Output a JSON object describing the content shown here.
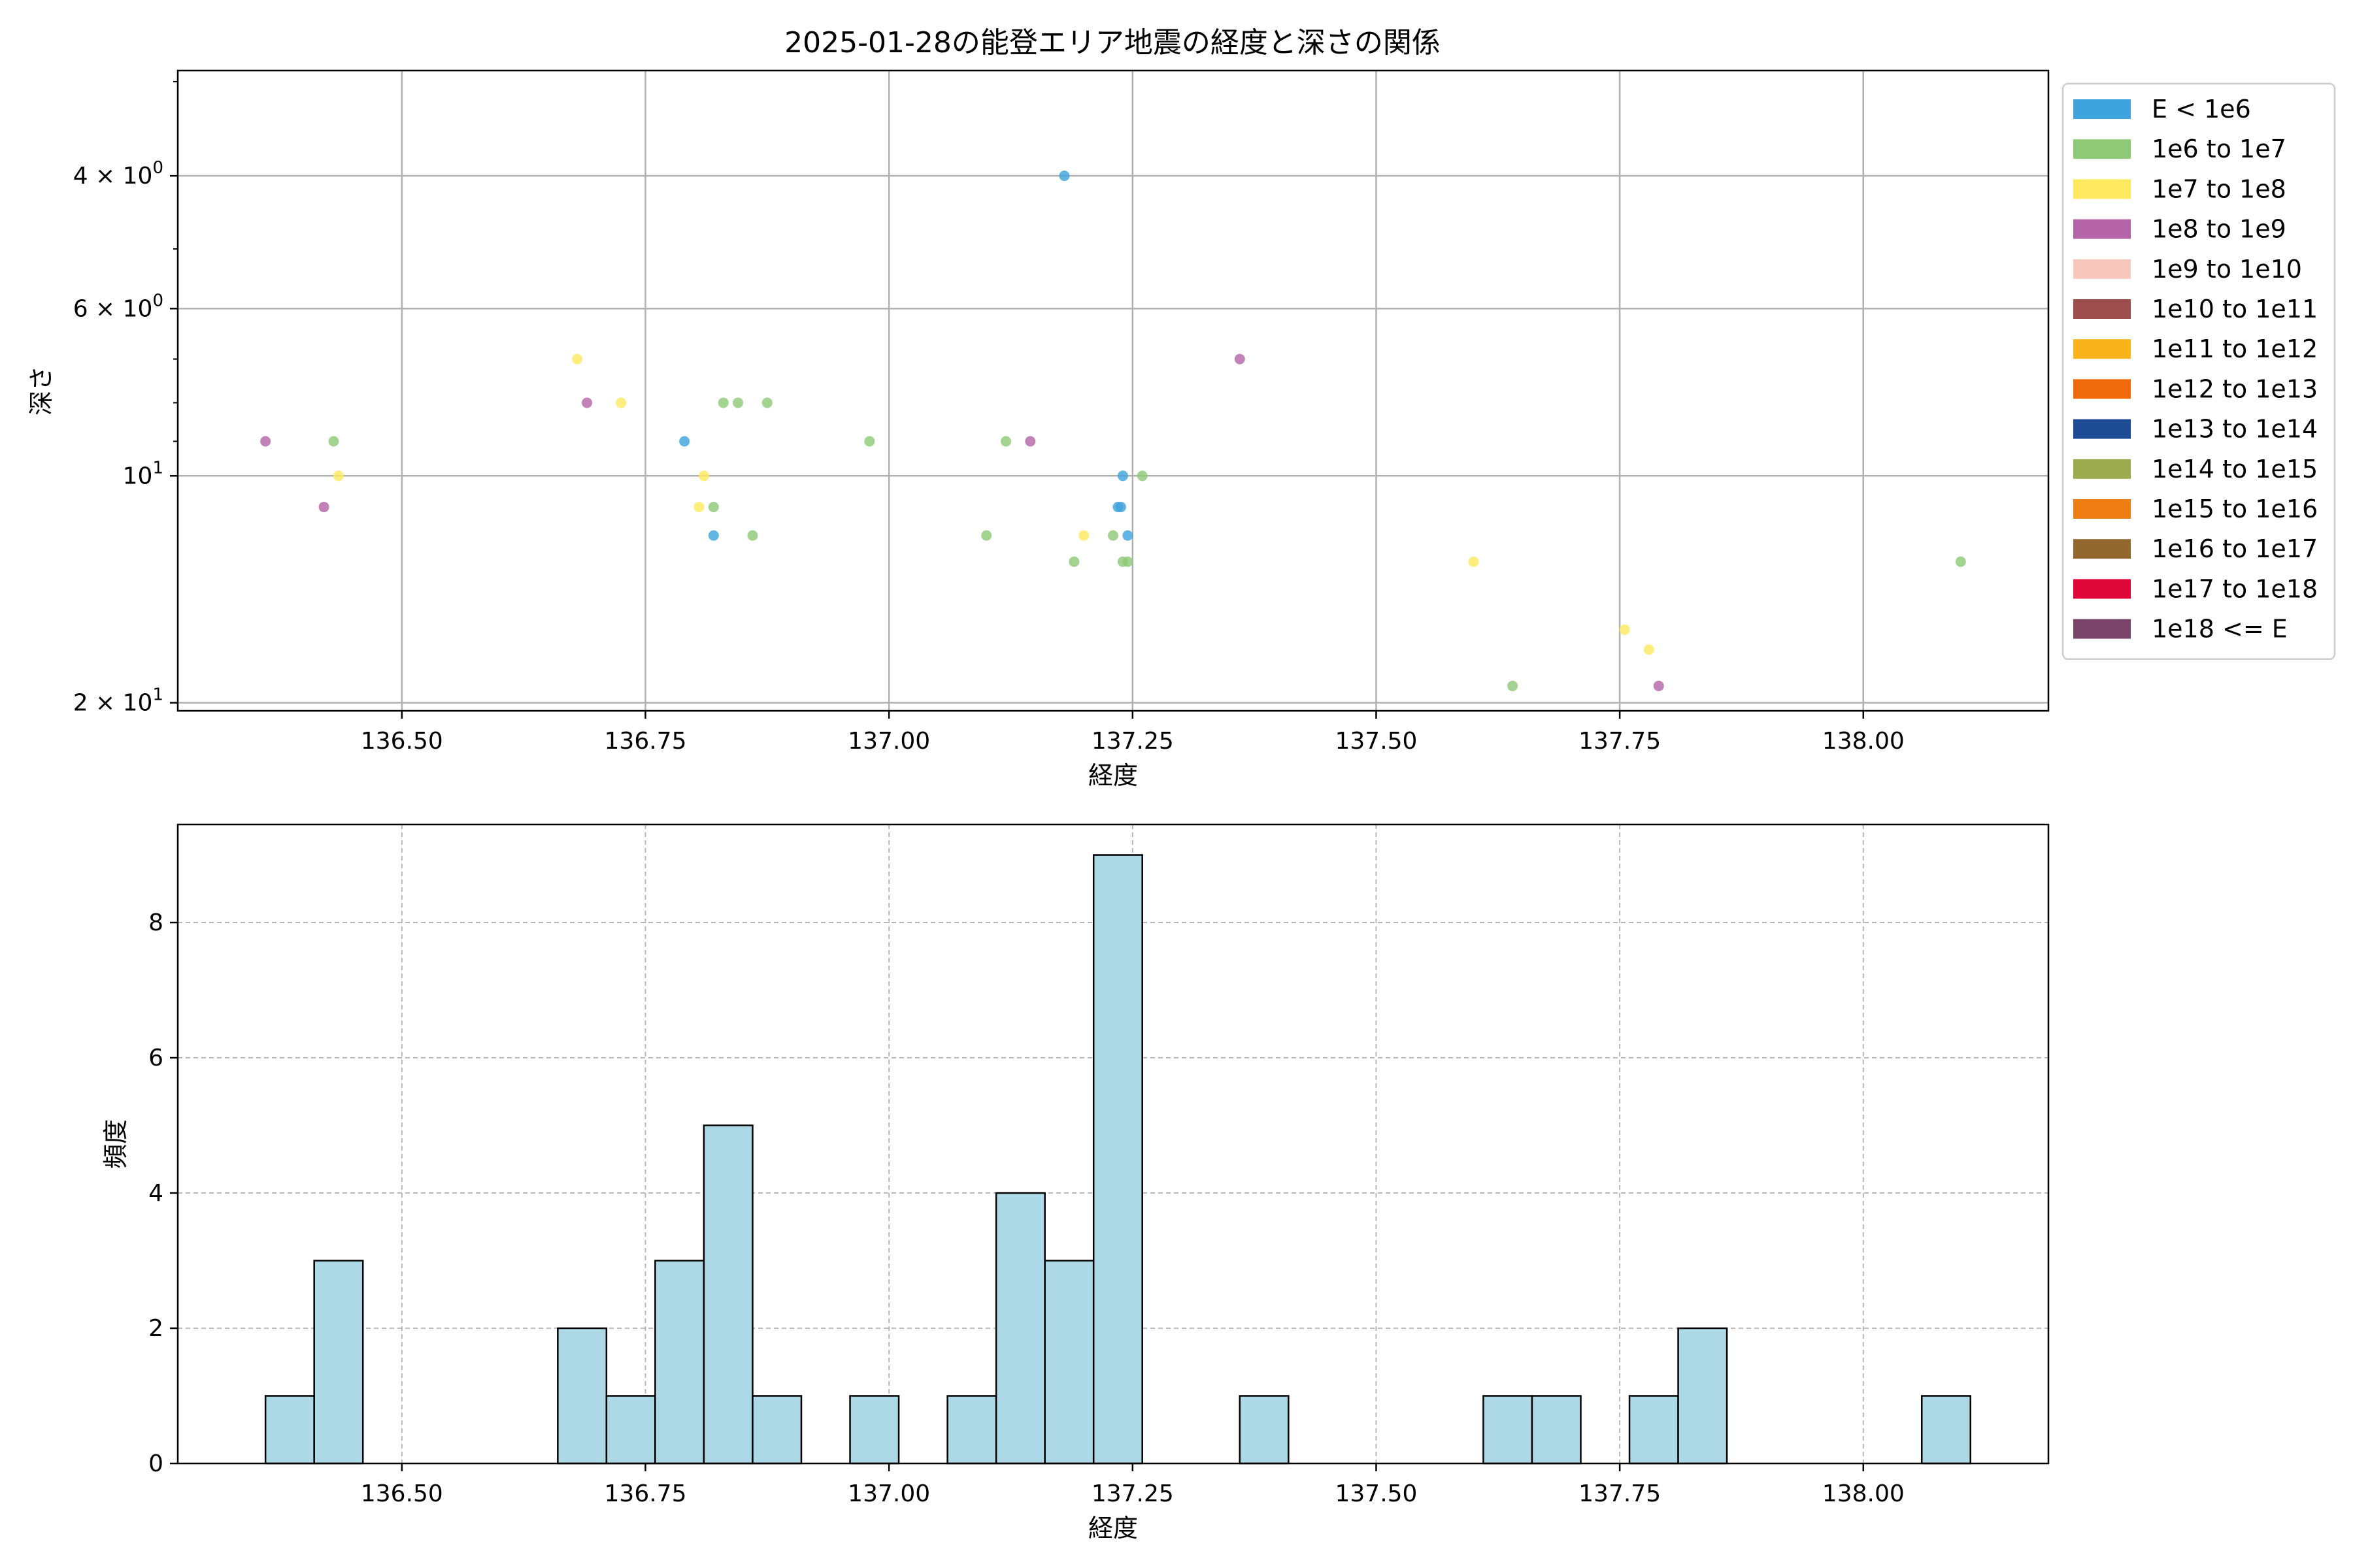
{
  "chart_data": [
    {
      "type": "scatter",
      "title": "2025-01-28の能登エリア地震の経度と深さの関係",
      "xlabel": "経度",
      "ylabel": "深さ",
      "xlim": [
        136.27,
        138.19
      ],
      "ylim": [
        2.9,
        20.5
      ],
      "yscale": "log",
      "yaxis_inverted": true,
      "xticks": [
        136.5,
        136.75,
        137.0,
        137.25,
        137.5,
        137.75,
        138.0
      ],
      "xtick_labels": [
        "136.50",
        "136.75",
        "137.00",
        "137.25",
        "137.50",
        "137.75",
        "138.00"
      ],
      "yticks": [
        4,
        6,
        10,
        20
      ],
      "ytick_labels": [
        {
          "base": "4 × 10",
          "exp": "0"
        },
        {
          "base": "6 × 10",
          "exp": "0"
        },
        {
          "base": "10",
          "exp": "1"
        },
        {
          "base": "2 × 10",
          "exp": "1"
        }
      ],
      "grid": true,
      "legend_position": "outside-right",
      "legend": [
        {
          "label": "E < 1e6",
          "color": "#3fa3dd"
        },
        {
          "label": "1e6 to 1e7",
          "color": "#8fc977"
        },
        {
          "label": "1e7 to 1e8",
          "color": "#fde95f"
        },
        {
          "label": "1e8 to 1e9",
          "color": "#b565a7"
        },
        {
          "label": "1e9 to 1e10",
          "color": "#f7c6bd"
        },
        {
          "label": "1e10 to 1e11",
          "color": "#9b4e4d"
        },
        {
          "label": "1e11 to 1e12",
          "color": "#f8b41a"
        },
        {
          "label": "1e12 to 1e13",
          "color": "#ef6a0b"
        },
        {
          "label": "1e13 to 1e14",
          "color": "#1d4c94"
        },
        {
          "label": "1e14 to 1e15",
          "color": "#9bab4d"
        },
        {
          "label": "1e15 to 1e16",
          "color": "#ee7e13"
        },
        {
          "label": "1e16 to 1e17",
          "color": "#93682e"
        },
        {
          "label": "1e17 to 1e18",
          "color": "#df0639"
        },
        {
          "label": "1e18 <= E",
          "color": "#7a436a"
        }
      ],
      "points": [
        {
          "x": 137.18,
          "y": 4.0,
          "category": "E < 1e6"
        },
        {
          "x": 136.79,
          "y": 9.0,
          "category": "E < 1e6"
        },
        {
          "x": 137.24,
          "y": 10.0,
          "category": "E < 1e6"
        },
        {
          "x": 137.235,
          "y": 11.0,
          "category": "E < 1e6"
        },
        {
          "x": 137.238,
          "y": 11.0,
          "category": "E < 1e6"
        },
        {
          "x": 136.82,
          "y": 12.0,
          "category": "E < 1e6"
        },
        {
          "x": 137.245,
          "y": 12.0,
          "category": "E < 1e6"
        },
        {
          "x": 136.43,
          "y": 9.0,
          "category": "1e6 to 1e7"
        },
        {
          "x": 136.83,
          "y": 8.0,
          "category": "1e6 to 1e7"
        },
        {
          "x": 136.845,
          "y": 8.0,
          "category": "1e6 to 1e7"
        },
        {
          "x": 136.875,
          "y": 8.0,
          "category": "1e6 to 1e7"
        },
        {
          "x": 136.98,
          "y": 9.0,
          "category": "1e6 to 1e7"
        },
        {
          "x": 137.12,
          "y": 9.0,
          "category": "1e6 to 1e7"
        },
        {
          "x": 136.82,
          "y": 11.0,
          "category": "1e6 to 1e7"
        },
        {
          "x": 136.86,
          "y": 12.0,
          "category": "1e6 to 1e7"
        },
        {
          "x": 137.1,
          "y": 12.0,
          "category": "1e6 to 1e7"
        },
        {
          "x": 137.19,
          "y": 13.0,
          "category": "1e6 to 1e7"
        },
        {
          "x": 137.23,
          "y": 12.0,
          "category": "1e6 to 1e7"
        },
        {
          "x": 137.24,
          "y": 13.0,
          "category": "1e6 to 1e7"
        },
        {
          "x": 137.245,
          "y": 13.0,
          "category": "1e6 to 1e7"
        },
        {
          "x": 137.26,
          "y": 10.0,
          "category": "1e6 to 1e7"
        },
        {
          "x": 137.64,
          "y": 19.0,
          "category": "1e6 to 1e7"
        },
        {
          "x": 138.1,
          "y": 13.0,
          "category": "1e6 to 1e7"
        },
        {
          "x": 136.68,
          "y": 7.0,
          "category": "1e7 to 1e8"
        },
        {
          "x": 136.725,
          "y": 8.0,
          "category": "1e7 to 1e8"
        },
        {
          "x": 136.435,
          "y": 10.0,
          "category": "1e7 to 1e8"
        },
        {
          "x": 136.81,
          "y": 10.0,
          "category": "1e7 to 1e8"
        },
        {
          "x": 136.805,
          "y": 11.0,
          "category": "1e7 to 1e8"
        },
        {
          "x": 137.2,
          "y": 12.0,
          "category": "1e7 to 1e8"
        },
        {
          "x": 137.6,
          "y": 13.0,
          "category": "1e7 to 1e8"
        },
        {
          "x": 137.755,
          "y": 16.0,
          "category": "1e7 to 1e8"
        },
        {
          "x": 137.78,
          "y": 17.0,
          "category": "1e7 to 1e8"
        },
        {
          "x": 136.36,
          "y": 9.0,
          "category": "1e8 to 1e9"
        },
        {
          "x": 136.42,
          "y": 11.0,
          "category": "1e8 to 1e9"
        },
        {
          "x": 136.69,
          "y": 8.0,
          "category": "1e8 to 1e9"
        },
        {
          "x": 137.145,
          "y": 9.0,
          "category": "1e8 to 1e9"
        },
        {
          "x": 137.36,
          "y": 7.0,
          "category": "1e8 to 1e9"
        },
        {
          "x": 137.79,
          "y": 19.0,
          "category": "1e8 to 1e9"
        }
      ]
    },
    {
      "type": "bar",
      "title": "",
      "xlabel": "経度",
      "ylabel": "頻度",
      "xlim": [
        136.27,
        138.19
      ],
      "ylim": [
        0,
        9.45
      ],
      "xticks": [
        136.5,
        136.75,
        137.0,
        137.25,
        137.5,
        137.75,
        138.0
      ],
      "xtick_labels": [
        "136.50",
        "136.75",
        "137.00",
        "137.25",
        "137.50",
        "137.75",
        "138.00"
      ],
      "yticks": [
        0,
        2,
        4,
        6,
        8
      ],
      "ytick_labels": [
        "0",
        "2",
        "4",
        "6",
        "8"
      ],
      "grid": true,
      "bar_color": "#add8e6",
      "bin_start": 136.36,
      "bin_width": 0.05,
      "bins": 35,
      "values": [
        1,
        3,
        0,
        0,
        0,
        0,
        2,
        1,
        3,
        5,
        1,
        0,
        1,
        0,
        1,
        4,
        3,
        9,
        0,
        0,
        1,
        0,
        0,
        0,
        0,
        1,
        1,
        0,
        1,
        2,
        0,
        0,
        0,
        0,
        1
      ]
    }
  ]
}
